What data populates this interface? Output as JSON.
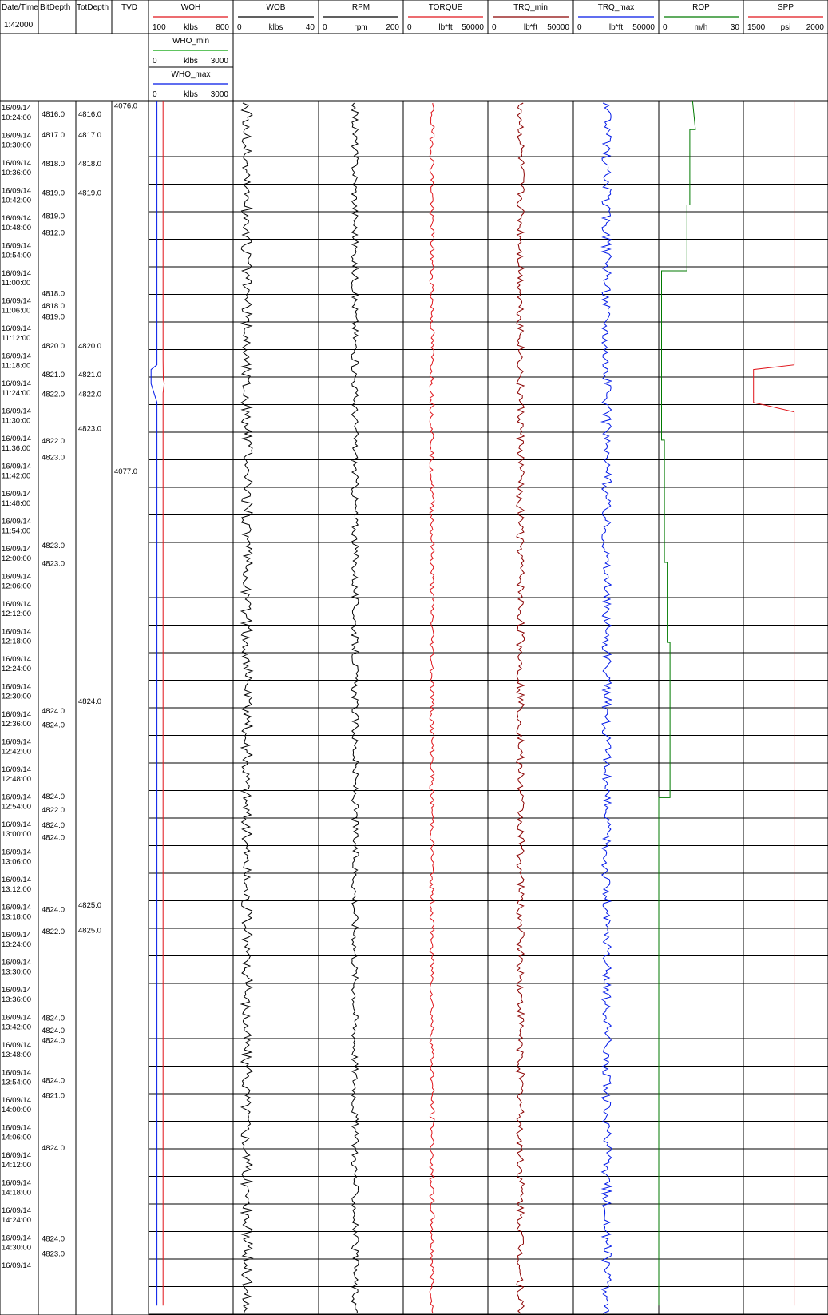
{
  "header": {
    "col_datetime": "Date/Time",
    "scale": "1:42000",
    "col_bitdepth": "BitDepth",
    "col_totdepth": "TotDepth",
    "col_tvd": "TVD"
  },
  "tracks": [
    {
      "label": "WOH",
      "color": "#e0151b",
      "min_label": "100",
      "unit": "klbs",
      "max_label": "800"
    },
    {
      "label": "WOB",
      "color": "#000000",
      "min_label": "0",
      "unit": "klbs",
      "max_label": "40"
    },
    {
      "label": "RPM",
      "color": "#000000",
      "min_label": "0",
      "unit": "rpm",
      "max_label": "200"
    },
    {
      "label": "TORQUE",
      "color": "#e0151b",
      "min_label": "0",
      "unit": "lb*ft",
      "max_label": "50000"
    },
    {
      "label": "TRQ_min",
      "color": "#8b0000",
      "min_label": "0",
      "unit": "lb*ft",
      "max_label": "50000"
    },
    {
      "label": "TRQ_max",
      "color": "#0018e8",
      "min_label": "0",
      "unit": "lb*ft",
      "max_label": "50000"
    },
    {
      "label": "ROP",
      "color": "#007a00",
      "min_label": "0",
      "unit": "m/h",
      "max_label": "30"
    },
    {
      "label": "SPP",
      "color": "#e0151b",
      "min_label": "1500",
      "unit": "psi",
      "max_label": "2000"
    }
  ],
  "sub_tracks": [
    {
      "label": "WHO_min",
      "color": "#00a000",
      "min_label": "0",
      "unit": "klbs",
      "max_label": "3000"
    },
    {
      "label": "WHO_max",
      "color": "#0018e8",
      "min_label": "0",
      "unit": "klbs",
      "max_label": "3000"
    }
  ],
  "chart_data": {
    "type": "line",
    "time_labels": [
      "16/09/14 10:24:00",
      "16/09/14 10:30:00",
      "16/09/14 10:36:00",
      "16/09/14 10:42:00",
      "16/09/14 10:48:00",
      "16/09/14 10:54:00",
      "16/09/14 11:00:00",
      "16/09/14 11:06:00",
      "16/09/14 11:12:00",
      "16/09/14 11:18:00",
      "16/09/14 11:24:00",
      "16/09/14 11:30:00",
      "16/09/14 11:36:00",
      "16/09/14 11:42:00",
      "16/09/14 11:48:00",
      "16/09/14 11:54:00",
      "16/09/14 12:00:00",
      "16/09/14 12:06:00",
      "16/09/14 12:12:00",
      "16/09/14 12:18:00",
      "16/09/14 12:24:00",
      "16/09/14 12:30:00",
      "16/09/14 12:36:00",
      "16/09/14 12:42:00",
      "16/09/14 12:48:00",
      "16/09/14 12:54:00",
      "16/09/14 13:00:00",
      "16/09/14 13:06:00",
      "16/09/14 13:12:00",
      "16/09/14 13:18:00",
      "16/09/14 13:24:00",
      "16/09/14 13:30:00",
      "16/09/14 13:36:00",
      "16/09/14 13:42:00",
      "16/09/14 13:48:00",
      "16/09/14 13:54:00",
      "16/09/14 14:00:00",
      "16/09/14 14:06:00",
      "16/09/14 14:12:00",
      "16/09/14 14:18:00",
      "16/09/14 14:24:00",
      "16/09/14 14:30:00",
      "16/09/14"
    ],
    "bitdepth_labels": [
      {
        "t": 0.35,
        "v": "4816.0"
      },
      {
        "t": 1.1,
        "v": "4817.0"
      },
      {
        "t": 2.15,
        "v": "4818.0"
      },
      {
        "t": 3.2,
        "v": "4819.0"
      },
      {
        "t": 4.05,
        "v": "4819.0"
      },
      {
        "t": 4.65,
        "v": "4812.0"
      },
      {
        "t": 6.85,
        "v": "4818.0"
      },
      {
        "t": 7.3,
        "v": "4818.0"
      },
      {
        "t": 7.7,
        "v": "4819.0"
      },
      {
        "t": 8.75,
        "v": "4820.0"
      },
      {
        "t": 9.8,
        "v": "4821.0"
      },
      {
        "t": 10.5,
        "v": "4822.0"
      },
      {
        "t": 12.2,
        "v": "4822.0"
      },
      {
        "t": 12.8,
        "v": "4823.0"
      },
      {
        "t": 16.0,
        "v": "4823.0"
      },
      {
        "t": 16.65,
        "v": "4823.0"
      },
      {
        "t": 22.0,
        "v": "4824.0"
      },
      {
        "t": 22.5,
        "v": "4824.0"
      },
      {
        "t": 25.1,
        "v": "4824.0"
      },
      {
        "t": 25.6,
        "v": "4822.0"
      },
      {
        "t": 26.15,
        "v": "4824.0"
      },
      {
        "t": 26.6,
        "v": "4824.0"
      },
      {
        "t": 29.2,
        "v": "4824.0"
      },
      {
        "t": 30.0,
        "v": "4822.0"
      },
      {
        "t": 33.15,
        "v": "4824.0"
      },
      {
        "t": 33.6,
        "v": "4824.0"
      },
      {
        "t": 33.95,
        "v": "4824.0"
      },
      {
        "t": 35.4,
        "v": "4824.0"
      },
      {
        "t": 35.95,
        "v": "4821.0"
      },
      {
        "t": 37.85,
        "v": "4824.0"
      },
      {
        "t": 41.15,
        "v": "4824.0"
      },
      {
        "t": 41.7,
        "v": "4823.0"
      }
    ],
    "totdepth_labels": [
      {
        "t": 0.35,
        "v": "4816.0"
      },
      {
        "t": 1.1,
        "v": "4817.0"
      },
      {
        "t": 2.15,
        "v": "4818.0"
      },
      {
        "t": 3.2,
        "v": "4819.0"
      },
      {
        "t": 8.75,
        "v": "4820.0"
      },
      {
        "t": 9.8,
        "v": "4821.0"
      },
      {
        "t": 10.5,
        "v": "4822.0"
      },
      {
        "t": 11.75,
        "v": "4823.0"
      },
      {
        "t": 21.65,
        "v": "4824.0"
      },
      {
        "t": 29.05,
        "v": "4825.0"
      },
      {
        "t": 29.95,
        "v": "4825.0"
      }
    ],
    "tvd_labels": [
      {
        "t": 0.05,
        "v": "4076.0"
      },
      {
        "t": 13.3,
        "v": "4077.0"
      }
    ],
    "time_range_minutes": [
      0,
      258
    ],
    "series": [
      {
        "name": "WOH",
        "unit": "klbs",
        "range": [
          100,
          800
        ],
        "points": [
          [
            0,
            220
          ],
          [
            55,
            220
          ],
          [
            59,
            222
          ],
          [
            60,
            230
          ],
          [
            62,
            220
          ],
          [
            220,
            220
          ],
          [
            256,
            220
          ]
        ]
      },
      {
        "name": "WHO_max",
        "unit": "klbs",
        "range": [
          0,
          3000
        ],
        "points": [
          [
            0,
            300
          ],
          [
            56,
            300
          ],
          [
            57,
            90
          ],
          [
            60,
            90
          ],
          [
            64,
            300
          ],
          [
            256,
            300
          ]
        ]
      },
      {
        "name": "ROP",
        "unit": "m/h",
        "range": [
          0,
          30
        ],
        "points": [
          [
            0,
            12
          ],
          [
            6,
            13
          ],
          [
            6,
            11
          ],
          [
            22,
            11
          ],
          [
            22,
            10
          ],
          [
            36,
            10
          ],
          [
            36,
            1
          ],
          [
            72,
            1
          ],
          [
            72,
            2
          ],
          [
            98,
            2
          ],
          [
            98,
            3
          ],
          [
            115,
            3
          ],
          [
            115,
            4
          ],
          [
            148,
            4
          ],
          [
            148,
            0
          ],
          [
            256,
            0
          ]
        ]
      },
      {
        "name": "SPP",
        "unit": "psi",
        "range": [
          1500,
          2000
        ],
        "points": [
          [
            0,
            1800
          ],
          [
            56,
            1800
          ],
          [
            57,
            1560
          ],
          [
            64,
            1560
          ],
          [
            66,
            1800
          ],
          [
            256,
            1800
          ]
        ]
      }
    ],
    "grid": "horizontal",
    "legend": "header"
  }
}
